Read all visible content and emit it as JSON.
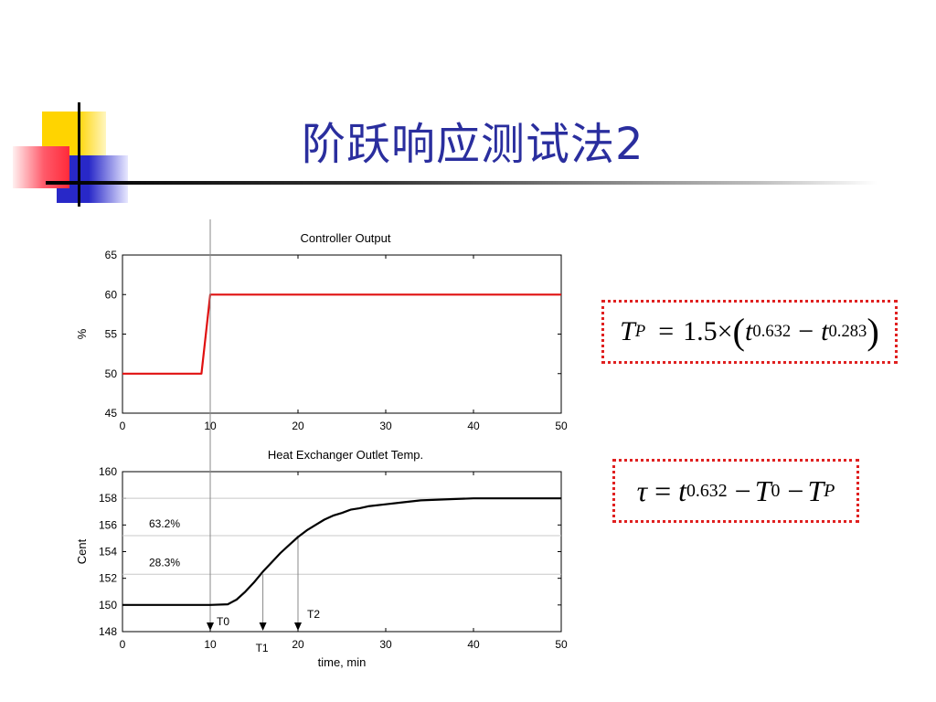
{
  "slide": {
    "title": "阶跃响应测试法2"
  },
  "formulas": {
    "tp": {
      "lhs_var": "T",
      "lhs_sub": "P",
      "eq": "=",
      "coef": "1.5",
      "times": "×",
      "open_paren": "(",
      "close_paren": ")",
      "t_var": "t",
      "sub_a": "0.632",
      "minus": "−",
      "sub_b": "0.283"
    },
    "tau": {
      "lhs": "τ",
      "eq": "=",
      "t_var": "t",
      "sub_a": "0.632",
      "minus": "−",
      "T_var": "T",
      "sub_0": "0",
      "sub_p": "P"
    }
  },
  "colors": {
    "title": "#2a2e9e",
    "controller_line": "#e01010",
    "temp_line": "#000000",
    "formula_border": "#e02020"
  },
  "chart_data": [
    {
      "type": "line",
      "title": "Controller Output",
      "xlabel": "",
      "ylabel": "%",
      "xlim": [
        0,
        50
      ],
      "ylim": [
        45,
        65
      ],
      "xticks": [
        0,
        10,
        20,
        30,
        40,
        50
      ],
      "yticks": [
        45,
        50,
        55,
        60,
        65
      ],
      "grid": false,
      "series": [
        {
          "color": "#e01010",
          "x": [
            0,
            9,
            10,
            50
          ],
          "y": [
            50,
            50,
            60,
            60
          ]
        }
      ]
    },
    {
      "type": "line",
      "title": "Heat Exchanger Outlet Temp.",
      "xlabel": "time, min",
      "ylabel": "Cent",
      "xlim": [
        0,
        50
      ],
      "ylim": [
        148,
        160
      ],
      "xticks": [
        0,
        10,
        20,
        30,
        40,
        50
      ],
      "yticks": [
        148,
        150,
        152,
        154,
        156,
        158,
        160
      ],
      "grid": false,
      "series": [
        {
          "color": "#000000",
          "x": [
            0,
            10,
            12,
            13,
            14,
            15,
            16,
            17,
            18,
            19,
            20,
            21,
            22,
            23,
            24,
            25,
            26,
            27,
            28,
            30,
            32,
            34,
            36,
            38,
            40,
            45,
            50
          ],
          "y": [
            150,
            150,
            150.05,
            150.4,
            151,
            151.7,
            152.5,
            153.2,
            153.9,
            154.5,
            155.1,
            155.6,
            156.0,
            156.4,
            156.7,
            156.9,
            157.15,
            157.25,
            157.4,
            157.55,
            157.7,
            157.85,
            157.9,
            157.95,
            158.0,
            158.0,
            158.0
          ]
        }
      ],
      "annotations": {
        "level_632": {
          "label": "63.2%",
          "y": 155.2
        },
        "level_283": {
          "label": "28.3%",
          "y": 152.3
        },
        "markers": [
          {
            "label": "T0",
            "x": 10
          },
          {
            "label": "T1",
            "x": 16
          },
          {
            "label": "T2",
            "x": 20
          }
        ]
      }
    }
  ]
}
